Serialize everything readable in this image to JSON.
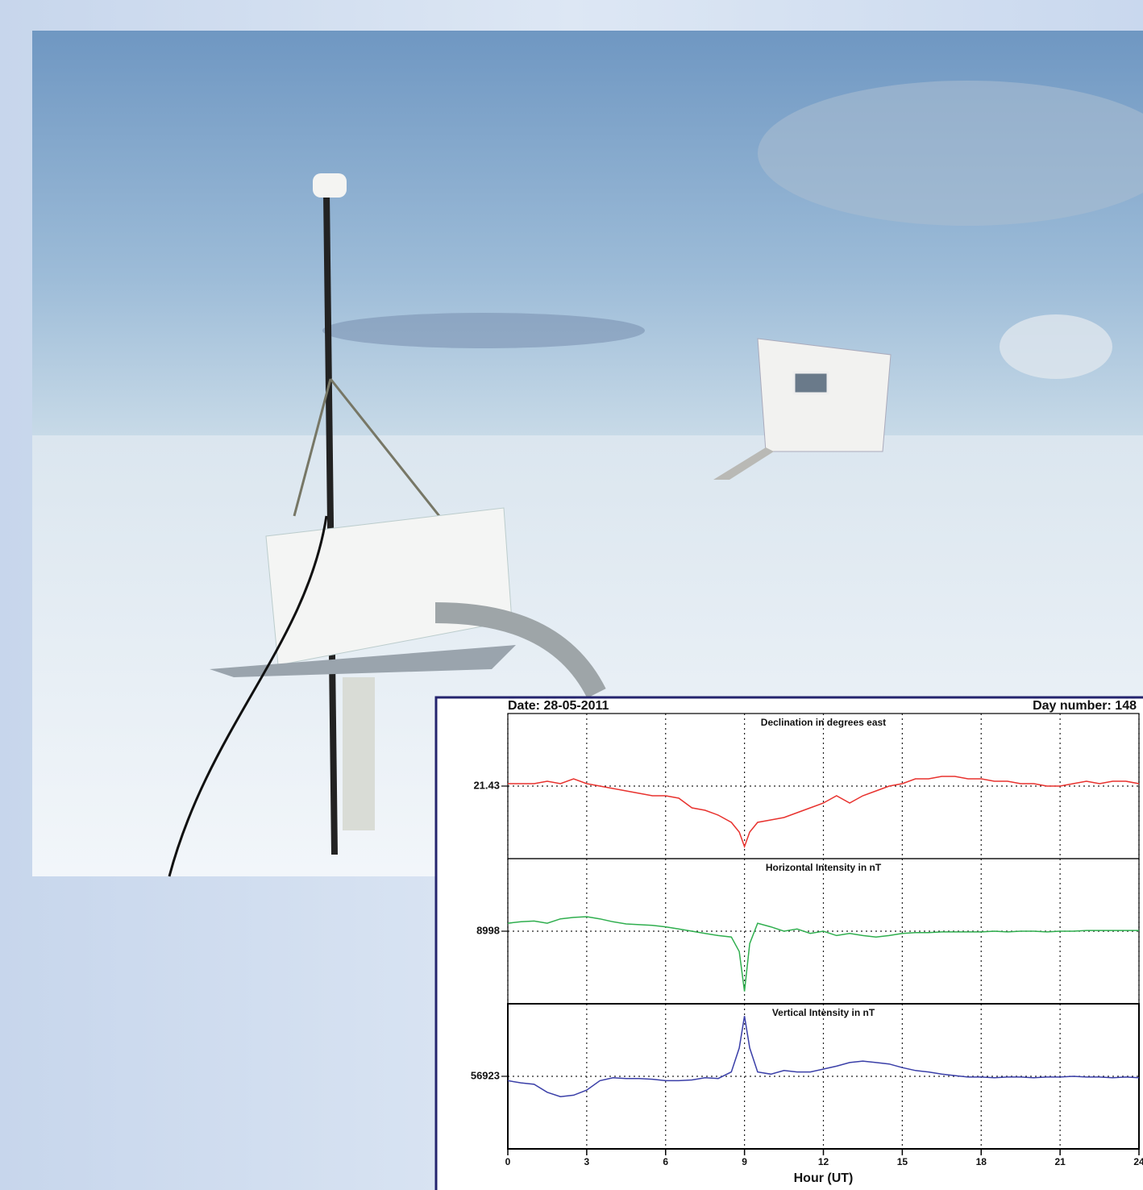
{
  "header": {
    "date": "Date: 28-05-2011",
    "day_number": "Day number: 148"
  },
  "chart_data": [
    {
      "type": "line",
      "title": "Declination in degrees east",
      "xlim": [
        0,
        24
      ],
      "xticks": [
        0,
        3,
        6,
        9,
        12,
        15,
        18,
        21,
        24
      ],
      "x": [
        0,
        0.5,
        1,
        1.5,
        2,
        2.5,
        3,
        3.5,
        4,
        4.5,
        5,
        5.5,
        6,
        6.5,
        7,
        7.5,
        8,
        8.5,
        8.8,
        9,
        9.2,
        9.5,
        10,
        10.5,
        11,
        11.5,
        12,
        12.5,
        13,
        13.5,
        14,
        14.5,
        15,
        15.5,
        16,
        16.5,
        17,
        17.5,
        18,
        18.5,
        19,
        19.5,
        20,
        20.5,
        21,
        21.5,
        22,
        22.5,
        23,
        23.5,
        24
      ],
      "ylim": [
        21.13,
        21.73
      ],
      "yticks": [
        21.43
      ],
      "series": [
        {
          "color": "#e8322e",
          "values": [
            21.44,
            21.44,
            21.44,
            21.45,
            21.44,
            21.46,
            21.44,
            21.43,
            21.42,
            21.41,
            21.4,
            21.39,
            21.39,
            21.38,
            21.34,
            21.33,
            21.31,
            21.28,
            21.24,
            21.18,
            21.24,
            21.28,
            21.29,
            21.3,
            21.32,
            21.34,
            21.36,
            21.39,
            21.36,
            21.39,
            21.41,
            21.43,
            21.44,
            21.46,
            21.46,
            21.47,
            21.47,
            21.46,
            21.46,
            21.45,
            21.45,
            21.44,
            21.44,
            21.43,
            21.43,
            21.44,
            21.45,
            21.44,
            21.45,
            21.45,
            21.44
          ]
        }
      ]
    },
    {
      "type": "line",
      "title": "Horizontal Intensity in nT",
      "xlim": [
        0,
        24
      ],
      "xticks": [
        0,
        3,
        6,
        9,
        12,
        15,
        18,
        21,
        24
      ],
      "x": [
        0,
        0.5,
        1,
        1.5,
        2,
        2.5,
        3,
        3.5,
        4,
        4.5,
        5,
        5.5,
        6,
        6.5,
        7,
        7.5,
        8,
        8.5,
        8.8,
        9,
        9.2,
        9.5,
        10,
        10.5,
        11,
        11.5,
        12,
        12.5,
        13,
        13.5,
        14,
        14.5,
        15,
        15.5,
        16,
        16.5,
        17,
        17.5,
        18,
        18.5,
        19,
        19.5,
        20,
        20.5,
        21,
        21.5,
        22,
        22.5,
        23,
        23.5,
        24
      ],
      "ylim": [
        8898,
        9098
      ],
      "yticks": [
        8998
      ],
      "series": [
        {
          "color": "#2fae4e",
          "values": [
            9009,
            9011,
            9012,
            9009,
            9015,
            9017,
            9018,
            9015,
            9011,
            9008,
            9007,
            9006,
            9004,
            9001,
            8998,
            8995,
            8992,
            8990,
            8970,
            8915,
            8981,
            9009,
            9004,
            8998,
            9001,
            8995,
            8998,
            8992,
            8995,
            8992,
            8990,
            8992,
            8995,
            8996,
            8996,
            8997,
            8997,
            8997,
            8997,
            8998,
            8997,
            8998,
            8998,
            8997,
            8998,
            8998,
            8999,
            8999,
            8999,
            8999,
            8999
          ]
        }
      ]
    },
    {
      "type": "line",
      "title": "Vertical Intensity in nT",
      "xlim": [
        0,
        24
      ],
      "xticks": [
        0,
        3,
        6,
        9,
        12,
        15,
        18,
        21,
        24
      ],
      "xlabel": "Hour (UT)",
      "x": [
        0,
        0.5,
        1,
        1.5,
        2,
        2.5,
        3,
        3.5,
        4,
        4.5,
        5,
        5.5,
        6,
        6.5,
        7,
        7.5,
        8,
        8.5,
        8.8,
        9,
        9.2,
        9.5,
        10,
        10.5,
        11,
        11.5,
        12,
        12.5,
        13,
        13.5,
        14,
        14.5,
        15,
        15.5,
        16,
        16.5,
        17,
        17.5,
        18,
        18.5,
        19,
        19.5,
        20,
        20.5,
        21,
        21.5,
        22,
        22.5,
        23,
        23.5,
        24
      ],
      "ylim": [
        56823,
        57023
      ],
      "yticks": [
        56923
      ],
      "series": [
        {
          "color": "#3a3fa8",
          "values": [
            56917,
            56914,
            56912,
            56901,
            56895,
            56897,
            56904,
            56917,
            56921,
            56920,
            56920,
            56919,
            56917,
            56917,
            56918,
            56921,
            56920,
            56929,
            56962,
            57006,
            56962,
            56929,
            56926,
            56931,
            56929,
            56929,
            56933,
            56937,
            56942,
            56944,
            56942,
            56940,
            56935,
            56931,
            56929,
            56926,
            56924,
            56922,
            56922,
            56921,
            56922,
            56922,
            56921,
            56922,
            56922,
            56923,
            56922,
            56922,
            56921,
            56922,
            56921
          ]
        }
      ]
    }
  ]
}
